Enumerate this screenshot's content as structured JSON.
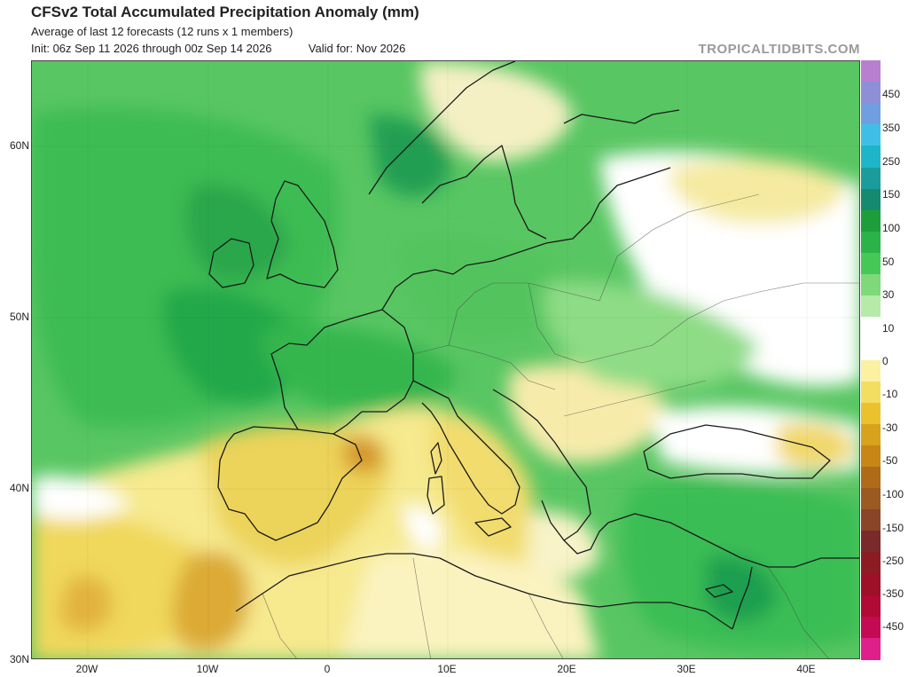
{
  "header": {
    "title": "CFSv2 Total Accumulated Precipitation Anomaly (mm)",
    "subtitle": "Average of last 12 forecasts (12 runs x 1 members)",
    "init": "Init: 06z Sep 11 2026 through 00z Sep 14 2026",
    "valid": "Valid for: Nov 2026",
    "brand": "TROPICALTIDBITS.COM"
  },
  "axes": {
    "lat_labels": [
      "60N",
      "50N",
      "40N",
      "30N"
    ],
    "lon_labels": [
      "20W",
      "10W",
      "0",
      "10E",
      "20E",
      "30E",
      "40E"
    ]
  },
  "colorbar": {
    "labels": [
      "450",
      "350",
      "250",
      "150",
      "100",
      "50",
      "30",
      "10",
      "0",
      "-10",
      "-30",
      "-50",
      "-100",
      "-150",
      "-250",
      "-350",
      "-450"
    ],
    "colors": [
      "#b87fd0",
      "#8f8fd8",
      "#6f9fe0",
      "#3fbfe8",
      "#1fb5c8",
      "#1a9c9c",
      "#158a70",
      "#1d9e3b",
      "#2bb34a",
      "#46c856",
      "#7ed97a",
      "#b5eaa9",
      "#ffffff",
      "#ffffff",
      "#fbf1a0",
      "#f3de62",
      "#e9c22e",
      "#d9a21c",
      "#c78616",
      "#b06b19",
      "#9a5a21",
      "#8a4428",
      "#7a2a2a",
      "#8c1c24",
      "#9e1028",
      "#b00a36",
      "#c40a52",
      "#e0208a"
    ]
  },
  "palette": {
    "ocean_base": "#5cc866",
    "green_light": "#8fe08a",
    "green_mid": "#45c251",
    "green_dark": "#22ad46",
    "green_deep": "#16984a",
    "teal": "#1a8a74",
    "yellow_pale": "#faf3b0",
    "yellow": "#f1dc66",
    "orange": "#e3b23a",
    "brown": "#c88a26",
    "coast": "#1a1a1a"
  }
}
